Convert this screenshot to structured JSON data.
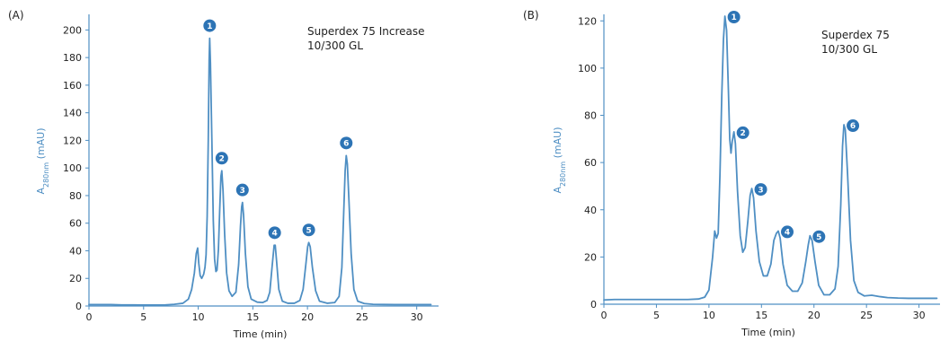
{
  "chart_data": [
    {
      "type": "line",
      "panel_label": "(A)",
      "annotation": [
        "Superdex 75 Increase",
        "10/300 GL"
      ],
      "xlabel": "Time (min)",
      "ylabel": "A280nm (mAU)",
      "ylabel_main": "A",
      "ylabel_sub": "280nm",
      "ylabel_rest": " (mAU)",
      "xlim": [
        0,
        32
      ],
      "ylim": [
        0,
        210
      ],
      "xticks": [
        0,
        5,
        10,
        15,
        20,
        25,
        30
      ],
      "yticks": [
        0,
        20,
        40,
        60,
        80,
        100,
        120,
        140,
        160,
        180,
        200
      ],
      "grid": false,
      "colors": {
        "line": "#4f8fc3",
        "axis": "#4f8fc3",
        "badge": "#2d74b5"
      },
      "series": [
        {
          "points": [
            [
              0,
              1
            ],
            [
              1,
              1
            ],
            [
              2,
              1
            ],
            [
              3,
              0.8
            ],
            [
              4,
              0.8
            ],
            [
              5,
              0.7
            ],
            [
              6,
              0.7
            ],
            [
              7,
              0.8
            ],
            [
              7.8,
              1.2
            ],
            [
              8.6,
              2
            ],
            [
              9.1,
              5
            ],
            [
              9.4,
              12
            ],
            [
              9.65,
              24
            ],
            [
              9.82,
              38
            ],
            [
              9.95,
              42
            ],
            [
              10.05,
              31
            ],
            [
              10.18,
              22
            ],
            [
              10.32,
              20
            ],
            [
              10.5,
              23
            ],
            [
              10.62,
              28
            ],
            [
              10.72,
              37
            ],
            [
              10.82,
              65
            ],
            [
              10.92,
              120
            ],
            [
              11.0,
              178
            ],
            [
              11.05,
              194
            ],
            [
              11.12,
              176
            ],
            [
              11.25,
              120
            ],
            [
              11.38,
              62
            ],
            [
              11.5,
              34
            ],
            [
              11.62,
              25
            ],
            [
              11.72,
              26
            ],
            [
              11.85,
              41
            ],
            [
              11.97,
              70
            ],
            [
              12.08,
              94
            ],
            [
              12.16,
              98
            ],
            [
              12.27,
              84
            ],
            [
              12.42,
              52
            ],
            [
              12.6,
              24
            ],
            [
              12.82,
              11
            ],
            [
              13.1,
              7
            ],
            [
              13.45,
              10
            ],
            [
              13.7,
              30
            ],
            [
              13.87,
              58
            ],
            [
              13.98,
              72
            ],
            [
              14.05,
              75
            ],
            [
              14.15,
              66
            ],
            [
              14.32,
              38
            ],
            [
              14.55,
              14
            ],
            [
              14.85,
              5
            ],
            [
              15.4,
              2.8
            ],
            [
              15.9,
              2.5
            ],
            [
              16.3,
              4
            ],
            [
              16.55,
              10
            ],
            [
              16.78,
              30
            ],
            [
              16.95,
              44
            ],
            [
              17.05,
              44
            ],
            [
              17.18,
              32
            ],
            [
              17.38,
              12
            ],
            [
              17.7,
              3.5
            ],
            [
              18.2,
              2
            ],
            [
              18.8,
              2
            ],
            [
              19.3,
              4
            ],
            [
              19.6,
              12
            ],
            [
              19.85,
              30
            ],
            [
              20.02,
              43
            ],
            [
              20.12,
              46
            ],
            [
              20.25,
              43
            ],
            [
              20.45,
              28
            ],
            [
              20.75,
              11
            ],
            [
              21.1,
              3.5
            ],
            [
              21.8,
              2
            ],
            [
              22.5,
              2.5
            ],
            [
              22.9,
              7
            ],
            [
              23.15,
              28
            ],
            [
              23.32,
              68
            ],
            [
              23.45,
              98
            ],
            [
              23.55,
              109
            ],
            [
              23.65,
              103
            ],
            [
              23.8,
              76
            ],
            [
              24.0,
              38
            ],
            [
              24.25,
              12
            ],
            [
              24.6,
              3.5
            ],
            [
              25.2,
              1.8
            ],
            [
              26.0,
              1.2
            ],
            [
              27.0,
              1.1
            ],
            [
              28.0,
              1
            ],
            [
              29.0,
              1
            ],
            [
              30.0,
              1
            ],
            [
              31.3,
              1
            ]
          ]
        }
      ],
      "peaks": [
        {
          "label": "1",
          "x": 11.05,
          "y": 194
        },
        {
          "label": "2",
          "x": 12.16,
          "y": 98
        },
        {
          "label": "3",
          "x": 14.05,
          "y": 75
        },
        {
          "label": "4",
          "x": 17.0,
          "y": 44
        },
        {
          "label": "5",
          "x": 20.12,
          "y": 46
        },
        {
          "label": "6",
          "x": 23.55,
          "y": 109
        }
      ]
    },
    {
      "type": "line",
      "panel_label": "(B)",
      "annotation": [
        "Superdex 75",
        "10/300 GL"
      ],
      "xlabel": "Time (min)",
      "ylabel": "A280nm (mAU)",
      "ylabel_main": "A",
      "ylabel_sub": "280nm",
      "ylabel_rest": " (mAU)",
      "xlim": [
        0,
        32
      ],
      "ylim": [
        0,
        122
      ],
      "xticks": [
        0,
        5,
        10,
        15,
        20,
        25,
        30
      ],
      "yticks": [
        0,
        20,
        40,
        60,
        80,
        100,
        120
      ],
      "grid": false,
      "colors": {
        "line": "#4f8fc3",
        "axis": "#4f8fc3",
        "badge": "#2d74b5"
      },
      "series": [
        {
          "points": [
            [
              0,
              1.8
            ],
            [
              1,
              2
            ],
            [
              2,
              2
            ],
            [
              3,
              2
            ],
            [
              4,
              2
            ],
            [
              5,
              2
            ],
            [
              6,
              2
            ],
            [
              7,
              2
            ],
            [
              8,
              2
            ],
            [
              9,
              2.2
            ],
            [
              9.6,
              3
            ],
            [
              10.0,
              6
            ],
            [
              10.35,
              20
            ],
            [
              10.55,
              31
            ],
            [
              10.72,
              28
            ],
            [
              10.88,
              30
            ],
            [
              11.05,
              55
            ],
            [
              11.22,
              88
            ],
            [
              11.38,
              112
            ],
            [
              11.52,
              122
            ],
            [
              11.68,
              116
            ],
            [
              11.85,
              91
            ],
            [
              11.98,
              70
            ],
            [
              12.1,
              64
            ],
            [
              12.22,
              69
            ],
            [
              12.38,
              73
            ],
            [
              12.52,
              68
            ],
            [
              12.72,
              48
            ],
            [
              12.98,
              29
            ],
            [
              13.22,
              22
            ],
            [
              13.45,
              24
            ],
            [
              13.7,
              35
            ],
            [
              13.92,
              46
            ],
            [
              14.08,
              49
            ],
            [
              14.25,
              45
            ],
            [
              14.48,
              31
            ],
            [
              14.8,
              18
            ],
            [
              15.18,
              12
            ],
            [
              15.55,
              12
            ],
            [
              15.9,
              17
            ],
            [
              16.18,
              27
            ],
            [
              16.42,
              30
            ],
            [
              16.6,
              31
            ],
            [
              16.78,
              28
            ],
            [
              17.05,
              17
            ],
            [
              17.45,
              8
            ],
            [
              17.95,
              5.5
            ],
            [
              18.45,
              5.5
            ],
            [
              18.88,
              9
            ],
            [
              19.22,
              18
            ],
            [
              19.45,
              25
            ],
            [
              19.62,
              29
            ],
            [
              19.82,
              27
            ],
            [
              20.1,
              18
            ],
            [
              20.45,
              8
            ],
            [
              20.95,
              4
            ],
            [
              21.5,
              4
            ],
            [
              22.0,
              6.5
            ],
            [
              22.3,
              16
            ],
            [
              22.55,
              42
            ],
            [
              22.72,
              67
            ],
            [
              22.85,
              76
            ],
            [
              22.98,
              74
            ],
            [
              23.2,
              55
            ],
            [
              23.48,
              27
            ],
            [
              23.8,
              10
            ],
            [
              24.2,
              5
            ],
            [
              24.8,
              3.5
            ],
            [
              25.5,
              3.8
            ],
            [
              26.3,
              3.2
            ],
            [
              27.0,
              2.8
            ],
            [
              28.0,
              2.6
            ],
            [
              29.0,
              2.5
            ],
            [
              30.0,
              2.5
            ],
            [
              31.0,
              2.5
            ],
            [
              31.7,
              2.5
            ]
          ]
        }
      ],
      "peaks": [
        {
          "label": "1",
          "x": 11.52,
          "y": 122
        },
        {
          "label": "2",
          "x": 12.38,
          "y": 73
        },
        {
          "label": "3",
          "x": 14.08,
          "y": 49
        },
        {
          "label": "4",
          "x": 16.6,
          "y": 31
        },
        {
          "label": "5",
          "x": 19.62,
          "y": 29
        },
        {
          "label": "6",
          "x": 22.85,
          "y": 76
        }
      ]
    }
  ]
}
